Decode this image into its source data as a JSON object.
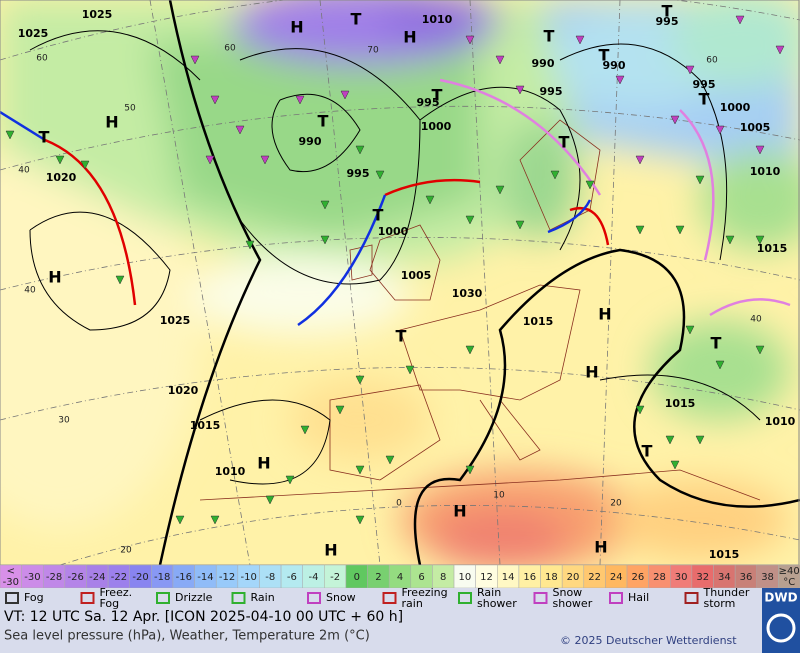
{
  "map": {
    "pressure_labels": [
      "1025",
      "1025",
      "1010",
      "995",
      "990",
      "990",
      "995",
      "995",
      "995",
      "1000",
      "1000",
      "1005",
      "1010",
      "990",
      "995",
      "1000",
      "1005",
      "1020",
      "1025",
      "1030",
      "1015",
      "1020",
      "1015",
      "1010",
      "1015",
      "1010",
      "1015",
      "1015"
    ],
    "systems": [
      "H",
      "T",
      "H",
      "T",
      "T",
      "T",
      "T",
      "H",
      "T",
      "T",
      "T",
      "T",
      "H",
      "T",
      "H",
      "H",
      "T",
      "H",
      "H",
      "H",
      "H",
      "T",
      "T"
    ],
    "grid_labels": [
      "60",
      "50",
      "40",
      "40",
      "30",
      "20",
      "60",
      "70",
      "0",
      "10",
      "20",
      "40",
      "60"
    ]
  },
  "legend": {
    "scale": [
      {
        "top": "<",
        "label": "-30",
        "color": "#d890e8"
      },
      {
        "label": "-30",
        "color": "#cc8ce8"
      },
      {
        "label": "-28",
        "color": "#c088e8"
      },
      {
        "label": "-26",
        "color": "#b484e8"
      },
      {
        "label": "-24",
        "color": "#a880e8"
      },
      {
        "label": "-22",
        "color": "#9c80ec"
      },
      {
        "label": "-20",
        "color": "#8884f0"
      },
      {
        "label": "-18",
        "color": "#8898f4"
      },
      {
        "label": "-16",
        "color": "#88aaf6"
      },
      {
        "label": "-14",
        "color": "#90bcf8"
      },
      {
        "label": "-12",
        "color": "#98cafa"
      },
      {
        "label": "-10",
        "color": "#a4d6fa"
      },
      {
        "label": "-8",
        "color": "#ace0f6"
      },
      {
        "label": "-6",
        "color": "#b4eaf0"
      },
      {
        "label": "-4",
        "color": "#bcf0e4"
      },
      {
        "label": "-2",
        "color": "#c4f4d8"
      },
      {
        "label": "0",
        "color": "#60c860"
      },
      {
        "label": "2",
        "color": "#78d070"
      },
      {
        "label": "4",
        "color": "#94dc80"
      },
      {
        "label": "6",
        "color": "#ace490"
      },
      {
        "label": "8",
        "color": "#c4eca4"
      },
      {
        "label": "10",
        "color": "#f8fcf0"
      },
      {
        "label": "12",
        "color": "#fffde0"
      },
      {
        "label": "14",
        "color": "#fff8c4"
      },
      {
        "label": "16",
        "color": "#fff0a4"
      },
      {
        "label": "18",
        "color": "#ffe890"
      },
      {
        "label": "20",
        "color": "#ffd880"
      },
      {
        "label": "22",
        "color": "#ffc870"
      },
      {
        "label": "24",
        "color": "#ffb860"
      },
      {
        "label": "26",
        "color": "#ffa464"
      },
      {
        "label": "28",
        "color": "#f89070"
      },
      {
        "label": "30",
        "color": "#f07c78"
      },
      {
        "label": "32",
        "color": "#e86c6c"
      },
      {
        "label": "34",
        "color": "#d87470"
      },
      {
        "label": "36",
        "color": "#c88078"
      },
      {
        "label": "38",
        "color": "#c09088"
      },
      {
        "top": "≥40",
        "label": "°C",
        "color": "#b8a090"
      }
    ],
    "weather": [
      [
        "Fog"
      ],
      [
        "Freez.",
        "Fog"
      ],
      [
        "Drizzle"
      ],
      [
        "Rain"
      ],
      [
        "Snow"
      ],
      [
        "Freezing",
        "rain"
      ],
      [
        "Rain",
        "shower"
      ],
      [
        "Snow",
        "shower"
      ],
      [
        "Hail"
      ],
      [
        "Thunder",
        "storm"
      ]
    ]
  },
  "info": {
    "valid_time": "VT: 12 UTC Sa.  12 Apr. [ICON 2025-04-10  00 UTC + 60 h]",
    "subtitle": "Sea level pressure (hPa), Weather, Temperature 2m (°C)",
    "copyright": "© 2025 Deutscher Wetterdienst",
    "logo": "DWD"
  }
}
